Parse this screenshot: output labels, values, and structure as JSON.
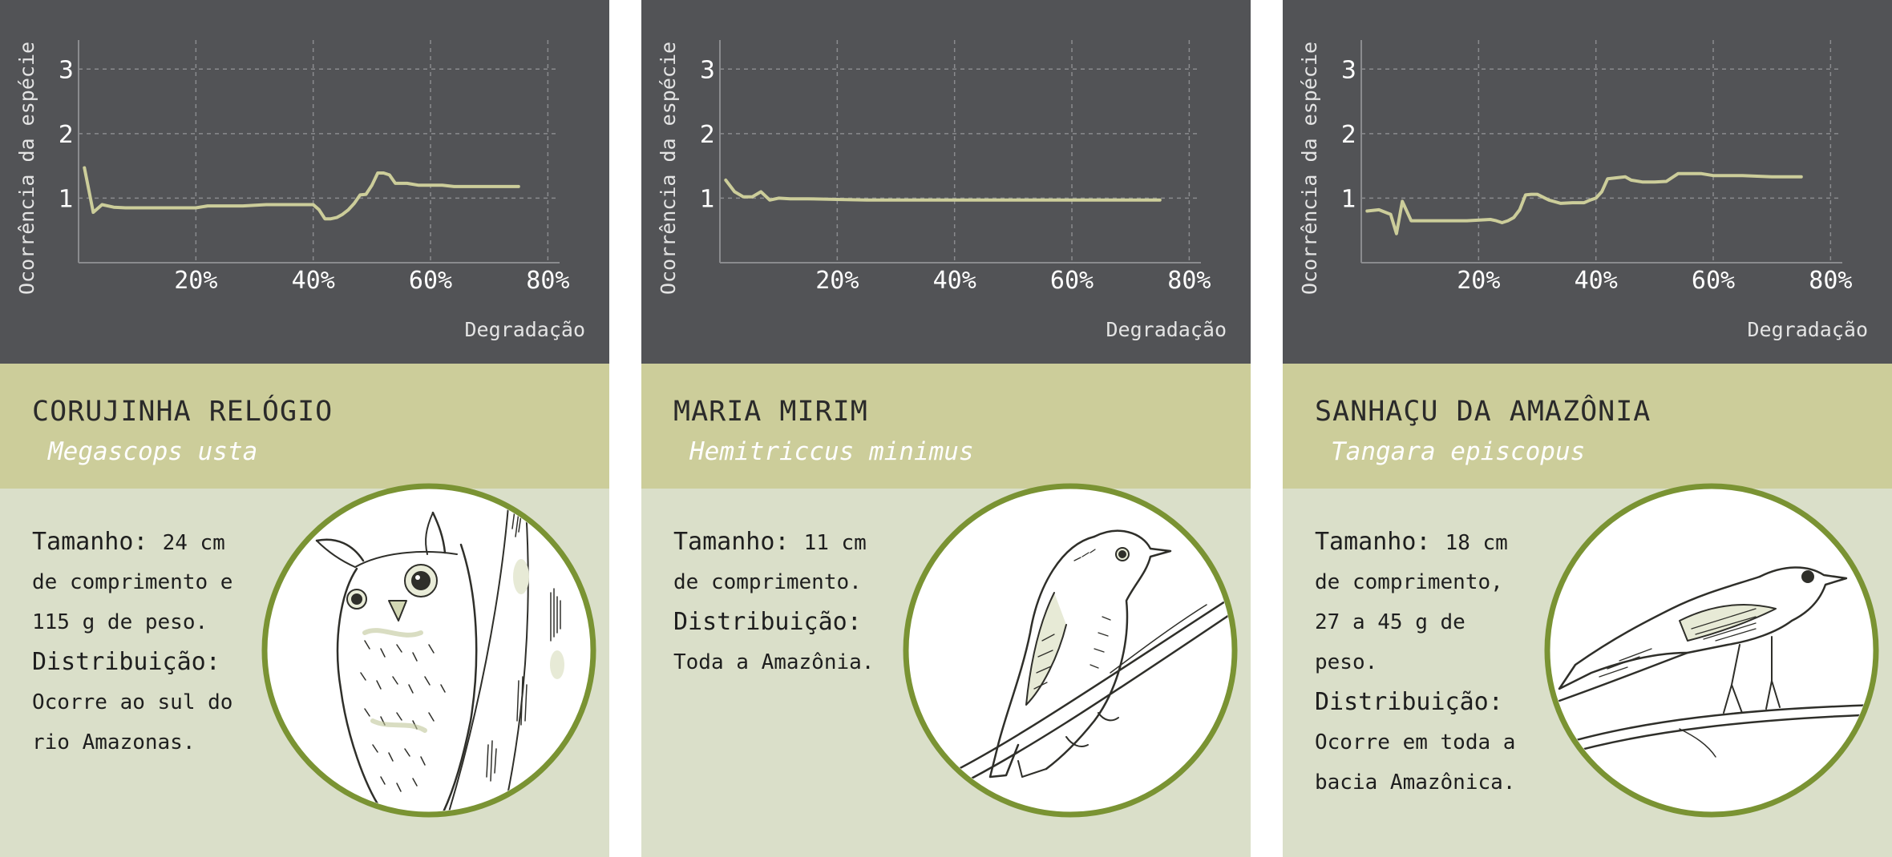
{
  "colors": {
    "chart_background": "#525356",
    "grid": "#8a8b8e",
    "axis_text": "#ffffff",
    "axis_title": "#e4e4e4",
    "line": "#cccd9a",
    "name_band": "#cccd9a",
    "info_background": "#dadfc9",
    "circle_ring": "#7a9333",
    "circle_fill": "#ffffff",
    "ink": "#2f2f2a"
  },
  "cards": [
    {
      "common_name": "CORUJINHA RELÓGIO",
      "scientific_name": "Megascops usta",
      "illustration_icon": "owl-illustration-icon",
      "info": {
        "size_label": "Tamanho:",
        "size_number": "24 cm",
        "size_lines": [
          "de comprimento e",
          "115 g de peso."
        ],
        "distribution_label": "Distribuição:",
        "distribution_lines": [
          "Ocorre ao sul do",
          "rio Amazonas."
        ]
      }
    },
    {
      "common_name": "MARIA MIRIM",
      "scientific_name": "Hemitriccus minimus",
      "illustration_icon": "tyrannulet-illustration-icon",
      "info": {
        "size_label": "Tamanho:",
        "size_number": "11 cm",
        "size_lines": [
          "de comprimento."
        ],
        "distribution_label": "Distribuição:",
        "distribution_lines": [
          "Toda a Amazônia."
        ]
      }
    },
    {
      "common_name": "SANHAÇU DA AMAZÔNIA",
      "scientific_name": "Tangara episcopus",
      "illustration_icon": "tanager-illustration-icon",
      "info": {
        "size_label": "Tamanho:",
        "size_number": "18 cm",
        "size_lines": [
          "de comprimento,",
          "27 a 45 g de",
          "peso."
        ],
        "distribution_label": "Distribuição:",
        "distribution_lines": [
          "Ocorre em toda a",
          "bacia Amazônica."
        ]
      }
    }
  ],
  "chart_data": [
    {
      "type": "line",
      "xlabel": "Degradação",
      "ylabel": "Ocorrência da espécie",
      "xlim": [
        0,
        82
      ],
      "ylim": [
        0,
        3.45
      ],
      "xticks": [
        20,
        40,
        60,
        80
      ],
      "xtick_labels": [
        "20%",
        "40%",
        "60%",
        "80%"
      ],
      "yticks": [
        1,
        2,
        3
      ],
      "ytick_labels": [
        "1",
        "2",
        "3"
      ],
      "grid": true,
      "x": [
        1,
        2.5,
        4,
        6,
        8,
        10,
        15,
        20,
        22,
        25,
        28,
        32,
        36,
        40,
        41,
        42,
        43,
        44,
        45,
        46,
        47,
        48,
        49,
        50,
        51,
        52,
        53,
        54,
        56,
        58,
        60,
        62,
        64,
        66,
        70,
        75
      ],
      "series": [
        {
          "values": [
            1.47,
            0.78,
            0.9,
            0.86,
            0.85,
            0.85,
            0.85,
            0.85,
            0.88,
            0.88,
            0.88,
            0.9,
            0.9,
            0.9,
            0.82,
            0.68,
            0.68,
            0.7,
            0.75,
            0.82,
            0.92,
            1.05,
            1.06,
            1.2,
            1.39,
            1.39,
            1.36,
            1.23,
            1.23,
            1.2,
            1.2,
            1.2,
            1.18,
            1.18,
            1.18,
            1.18
          ]
        }
      ]
    },
    {
      "type": "line",
      "xlabel": "Degradação",
      "ylabel": "Ocorrência da espécie",
      "xlim": [
        0,
        82
      ],
      "ylim": [
        0,
        3.45
      ],
      "xticks": [
        20,
        40,
        60,
        80
      ],
      "xtick_labels": [
        "20%",
        "40%",
        "60%",
        "80%"
      ],
      "yticks": [
        1,
        2,
        3
      ],
      "ytick_labels": [
        "1",
        "2",
        "3"
      ],
      "grid": true,
      "x": [
        1,
        2.5,
        4,
        5.5,
        7,
        8.5,
        10,
        12,
        15,
        20,
        25,
        30,
        40,
        50,
        60,
        70,
        75
      ],
      "series": [
        {
          "values": [
            1.28,
            1.1,
            1.02,
            1.02,
            1.1,
            0.97,
            1.0,
            0.99,
            0.99,
            0.98,
            0.97,
            0.97,
            0.97,
            0.97,
            0.97,
            0.97,
            0.97
          ]
        }
      ]
    },
    {
      "type": "line",
      "xlabel": "Degradação",
      "ylabel": "Ocorrência da espécie",
      "xlim": [
        0,
        82
      ],
      "ylim": [
        0,
        3.45
      ],
      "xticks": [
        20,
        40,
        60,
        80
      ],
      "xtick_labels": [
        "20%",
        "40%",
        "60%",
        "80%"
      ],
      "yticks": [
        1,
        2,
        3
      ],
      "ytick_labels": [
        "1",
        "2",
        "3"
      ],
      "grid": true,
      "x": [
        1,
        3,
        5,
        6,
        7,
        8.5,
        10,
        14,
        18,
        22,
        23,
        24,
        25,
        26,
        27,
        28,
        29,
        30,
        32,
        34,
        36,
        38,
        39,
        40,
        41,
        42,
        45,
        46,
        48,
        50,
        52,
        54,
        58,
        60,
        65,
        70,
        75
      ],
      "series": [
        {
          "values": [
            0.8,
            0.82,
            0.75,
            0.45,
            0.95,
            0.65,
            0.65,
            0.65,
            0.65,
            0.67,
            0.65,
            0.62,
            0.65,
            0.7,
            0.82,
            1.05,
            1.06,
            1.06,
            0.97,
            0.92,
            0.93,
            0.93,
            0.97,
            1.0,
            1.1,
            1.3,
            1.33,
            1.28,
            1.25,
            1.25,
            1.26,
            1.38,
            1.38,
            1.35,
            1.35,
            1.33,
            1.33
          ]
        }
      ]
    }
  ]
}
